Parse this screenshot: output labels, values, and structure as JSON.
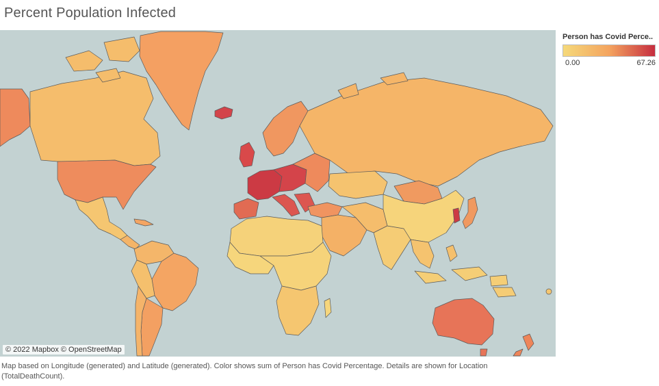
{
  "title": "Percent Population Infected",
  "legend": {
    "title": "Person has Covid Perce..",
    "min": "0.00",
    "max": "67.26",
    "color_low": "#f5d97a",
    "color_mid": "#f4a45f",
    "color_high": "#c62d3f"
  },
  "map": {
    "attribution": "© 2022 Mapbox © OpenStreetMap",
    "ocean_color": "#c3d2d2"
  },
  "caption": "Map based on Longitude (generated) and Latitude (generated).  Color shows sum of Person has Covid Percentage.  Details are shown for Location (TotalDeathCount)."
}
